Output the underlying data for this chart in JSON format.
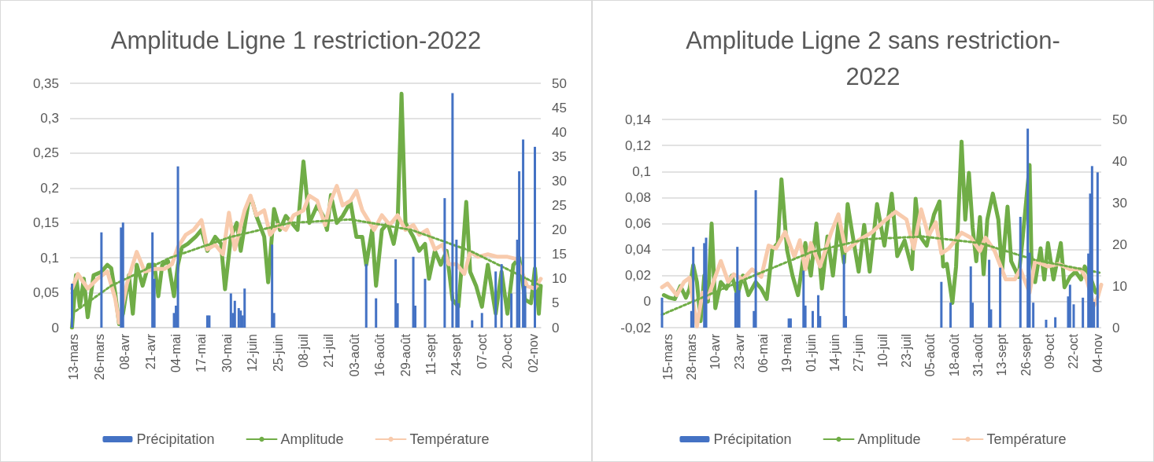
{
  "chart_data": [
    {
      "type": "line",
      "title": "Amplitude Ligne 1 restriction-2022",
      "grid": "y",
      "legend": "bottom",
      "marker": "none",
      "xlim": [
        "--03-11",
        "--11-06"
      ],
      "xticks": [
        {
          "value": "--03-13",
          "label": "13-mars"
        },
        {
          "value": "--03-26",
          "label": "26-mars"
        },
        {
          "value": "--04-08",
          "label": "08-avr"
        },
        {
          "value": "--04-21",
          "label": "21-avr"
        },
        {
          "value": "--05-04",
          "label": "04-mai"
        },
        {
          "value": "--05-17",
          "label": "17-mai"
        },
        {
          "value": "--05-30",
          "label": "30-mai"
        },
        {
          "value": "--06-12",
          "label": "12-juin"
        },
        {
          "value": "--06-25",
          "label": "25-juin"
        },
        {
          "value": "--07-08",
          "label": "08-juil"
        },
        {
          "value": "--07-21",
          "label": "21-juil"
        },
        {
          "value": "--08-03",
          "label": "03-août"
        },
        {
          "value": "--08-16",
          "label": "16-août"
        },
        {
          "value": "--08-29",
          "label": "29-août"
        },
        {
          "value": "--09-11",
          "label": "11-sept"
        },
        {
          "value": "--09-24",
          "label": "24-sept"
        },
        {
          "value": "--10-07",
          "label": "07-oct"
        },
        {
          "value": "--10-20",
          "label": "20-oct"
        },
        {
          "value": "--11-02",
          "label": "02-nov"
        }
      ],
      "ylim": [
        0,
        0.35
      ],
      "yticks": [
        0,
        {
          "value": 0.05,
          "label": "0,05"
        },
        {
          "value": 0.1,
          "label": "0,1"
        },
        {
          "value": 0.15,
          "label": "0,15"
        },
        {
          "value": 0.2,
          "label": "0,2"
        },
        {
          "value": 0.25,
          "label": "0,25"
        },
        {
          "value": 0.3,
          "label": "0,3"
        },
        {
          "value": 0.35,
          "label": "0,35"
        }
      ],
      "y2lim": [
        0,
        50
      ],
      "y2ticks": [
        0,
        5,
        10,
        15,
        20,
        25,
        30,
        35,
        40,
        45,
        50
      ],
      "series": [
        {
          "name": "Précipitation",
          "type": "bar",
          "axis": "y2",
          "color": "#4472c4",
          "x": [
            "--03-12",
            "--03-27",
            "--04-06",
            "--04-07",
            "--04-22",
            "--04-23",
            "--05-03",
            "--05-04",
            "--05-05",
            "--05-20",
            "--05-21",
            "--06-01",
            "--06-02",
            "--06-03",
            "--06-05",
            "--06-06",
            "--06-07",
            "--06-08",
            "--06-22",
            "--06-23",
            "--08-09",
            "--08-14",
            "--08-24",
            "--08-25",
            "--09-02",
            "--09-03",
            "--09-08",
            "--09-18",
            "--09-22",
            "--09-24",
            "--09-25",
            "--10-02",
            "--10-07",
            "--10-14",
            "--10-17",
            "--10-22",
            "--10-25",
            "--10-26",
            "--10-28",
            "--10-29",
            "--11-03"
          ],
          "values": [
            9,
            19.5,
            20.5,
            21.5,
            19.5,
            10,
            3,
            4.5,
            33,
            2.5,
            2.5,
            7,
            3,
            5.5,
            4,
            3.5,
            2.5,
            8,
            17,
            3,
            13,
            6,
            14,
            5,
            14.5,
            4.5,
            10,
            26.5,
            48,
            18,
            5,
            1.5,
            3,
            11.5,
            13,
            7,
            18,
            32,
            38.5,
            8.5,
            37
          ]
        },
        {
          "name": "Amplitude",
          "axis": "y",
          "color": "#70ad47",
          "x": [
            "--03-12",
            "--03-14",
            "--03-16",
            "--03-18",
            "--03-20",
            "--03-23",
            "--03-27",
            "--03-30",
            "--04-01",
            "--04-03",
            "--04-05",
            "--04-07",
            "--04-10",
            "--04-12",
            "--04-14",
            "--04-17",
            "--04-20",
            "--04-23",
            "--04-25",
            "--04-27",
            "--04-30",
            "--05-03",
            "--05-05",
            "--05-07",
            "--05-10",
            "--05-14",
            "--05-17",
            "--05-20",
            "--05-24",
            "--05-27",
            "--05-29",
            "--06-01",
            "--06-04",
            "--06-06",
            "--06-10",
            "--06-12",
            "--06-14",
            "--06-18",
            "--06-20",
            "--06-23",
            "--06-26",
            "--06-29",
            "--07-02",
            "--07-05",
            "--07-08",
            "--07-11",
            "--07-15",
            "--07-18",
            "--07-20",
            "--07-22",
            "--07-25",
            "--07-28",
            "--08-01",
            "--08-04",
            "--08-07",
            "--08-09",
            "--08-12",
            "--08-14",
            "--08-17",
            "--08-20",
            "--08-23",
            "--08-25",
            "--08-27",
            "--08-29",
            "--09-02",
            "--09-05",
            "--09-08",
            "--09-10",
            "--09-13",
            "--09-16",
            "--09-19",
            "--09-22",
            "--09-25",
            "--09-27",
            "--09-29",
            "--10-01",
            "--10-04",
            "--10-07",
            "--10-10",
            "--10-14",
            "--10-17",
            "--10-20",
            "--10-23",
            "--10-26",
            "--10-29",
            "--11-01",
            "--11-03",
            "--11-05",
            "--11-06"
          ],
          "values": [
            0.0,
            0.075,
            0.03,
            0.07,
            0.015,
            0.075,
            0.08,
            0.09,
            0.085,
            0.05,
            0.005,
            0.02,
            0.075,
            0.02,
            0.09,
            0.06,
            0.09,
            0.09,
            0.045,
            0.09,
            0.095,
            0.045,
            0.09,
            0.115,
            0.12,
            0.13,
            0.14,
            0.11,
            0.13,
            0.12,
            0.055,
            0.13,
            0.15,
            0.11,
            0.18,
            0.18,
            0.16,
            0.13,
            0.065,
            0.17,
            0.14,
            0.16,
            0.15,
            0.14,
            0.238,
            0.15,
            0.175,
            0.16,
            0.14,
            0.19,
            0.15,
            0.16,
            0.18,
            0.13,
            0.13,
            0.09,
            0.14,
            0.06,
            0.14,
            0.15,
            0.12,
            0.15,
            0.335,
            0.15,
            0.13,
            0.11,
            0.12,
            0.07,
            0.11,
            0.09,
            0.11,
            0.04,
            0.03,
            0.1,
            0.18,
            0.08,
            0.06,
            0.03,
            0.09,
            0.02,
            0.08,
            0.02,
            0.09,
            0.1,
            0.04,
            0.035,
            0.085,
            0.02,
            0.06
          ]
        },
        {
          "name": "Température",
          "axis": "y2",
          "color": "#f8cbad",
          "x": [
            "--03-12",
            "--03-15",
            "--03-20",
            "--03-25",
            "--03-30",
            "--04-03",
            "--04-05",
            "--04-09",
            "--04-14",
            "--04-18",
            "--04-23",
            "--04-28",
            "--05-02",
            "--05-05",
            "--05-09",
            "--05-13",
            "--05-17",
            "--05-20",
            "--05-24",
            "--05-28",
            "--05-31",
            "--06-03",
            "--06-08",
            "--06-11",
            "--06-14",
            "--06-18",
            "--06-21",
            "--06-25",
            "--06-29",
            "--07-03",
            "--07-08",
            "--07-11",
            "--07-15",
            "--07-19",
            "--07-22",
            "--07-25",
            "--07-28",
            "--08-01",
            "--08-04",
            "--08-07",
            "--08-10",
            "--08-13",
            "--08-17",
            "--08-21",
            "--08-25",
            "--08-29",
            "--09-02",
            "--09-05",
            "--09-09",
            "--09-13",
            "--09-17",
            "--09-20",
            "--09-24",
            "--09-28",
            "--10-01",
            "--10-05",
            "--10-10",
            "--10-15",
            "--10-20",
            "--10-25",
            "--10-30",
            "--11-03",
            "--11-06"
          ],
          "values": [
            8,
            11,
            8,
            10,
            11.5,
            6,
            1,
            9,
            15.5,
            11.5,
            12,
            12,
            13,
            16.5,
            19,
            20,
            22,
            16,
            17,
            15,
            23.5,
            16,
            24,
            27,
            23,
            24,
            19,
            21,
            20,
            23,
            24,
            27,
            26,
            21,
            26,
            29,
            25,
            26,
            28,
            24,
            22,
            20,
            23,
            21,
            23,
            20,
            21,
            19,
            20,
            16,
            17,
            13,
            13,
            11,
            15.5,
            14.5,
            15,
            14.5,
            14.5,
            14,
            8.5,
            8,
            10
          ]
        },
        {
          "type": "line",
          "axis": "y",
          "color": "#70ad47",
          "line_style": "dotted",
          "x": [
            "--03-12",
            "--04-01",
            "--05-01",
            "--06-01",
            "--07-01",
            "--08-01",
            "--09-01",
            "--10-01",
            "--11-06"
          ],
          "values": [
            0.02,
            0.06,
            0.1,
            0.13,
            0.15,
            0.155,
            0.14,
            0.11,
            0.06
          ]
        }
      ]
    },
    {
      "type": "line",
      "title": "Amplitude Ligne 2 sans restriction-2022",
      "grid": "y",
      "legend": "bottom",
      "marker": "none",
      "xlim": [
        "--03-12",
        "--11-06"
      ],
      "xticks": [
        {
          "value": "--03-15",
          "label": "15-mars"
        },
        {
          "value": "--03-28",
          "label": "28-mars"
        },
        {
          "value": "--04-10",
          "label": "10-avr"
        },
        {
          "value": "--04-23",
          "label": "23-avr"
        },
        {
          "value": "--05-06",
          "label": "06-mai"
        },
        {
          "value": "--05-19",
          "label": "19-mai"
        },
        {
          "value": "--06-01",
          "label": "01-juin"
        },
        {
          "value": "--06-14",
          "label": "14-juin"
        },
        {
          "value": "--06-27",
          "label": "27-juin"
        },
        {
          "value": "--07-10",
          "label": "10-juil"
        },
        {
          "value": "--07-23",
          "label": "23-juil"
        },
        {
          "value": "--08-05",
          "label": "05-août"
        },
        {
          "value": "--08-18",
          "label": "18-août"
        },
        {
          "value": "--08-31",
          "label": "31-août"
        },
        {
          "value": "--09-13",
          "label": "13-sept"
        },
        {
          "value": "--09-26",
          "label": "26-sept"
        },
        {
          "value": "--10-09",
          "label": "09-oct"
        },
        {
          "value": "--10-22",
          "label": "22-oct"
        },
        {
          "value": "--11-04",
          "label": "04-nov"
        }
      ],
      "ylim": [
        -0.02,
        0.14
      ],
      "yticks": [
        {
          "value": -0.02,
          "label": "-0,02"
        },
        0,
        {
          "value": 0.02,
          "label": "0,02"
        },
        {
          "value": 0.04,
          "label": "0,04"
        },
        {
          "value": 0.06,
          "label": "0,06"
        },
        {
          "value": 0.08,
          "label": "0,08"
        },
        {
          "value": 0.1,
          "label": "0,1"
        },
        {
          "value": 0.12,
          "label": "0,12"
        },
        {
          "value": 0.14,
          "label": "0,14"
        }
      ],
      "y2lim": [
        0,
        50
      ],
      "y2ticks": [
        0,
        10,
        20,
        30,
        40,
        50
      ],
      "series": [
        {
          "name": "Précipitation",
          "type": "bar",
          "axis": "y2",
          "color": "#4472c4",
          "x": [
            "--03-12",
            "--03-28",
            "--03-29",
            "--04-04",
            "--04-05",
            "--04-21",
            "--04-22",
            "--04-23",
            "--05-01",
            "--05-02",
            "--05-20",
            "--05-21",
            "--05-28",
            "--05-29",
            "--06-02",
            "--06-05",
            "--06-06",
            "--06-19",
            "--06-20",
            "--08-11",
            "--08-16",
            "--08-27",
            "--08-28",
            "--09-06",
            "--09-07",
            "--09-12",
            "--09-23",
            "--09-27",
            "--09-28",
            "--09-30",
            "--10-07",
            "--10-12",
            "--10-19",
            "--10-20",
            "--10-22",
            "--10-27",
            "--10-30",
            "--10-31",
            "--11-01",
            "--11-02",
            "--11-04"
          ],
          "values": [
            7.2,
            4,
            19.4,
            20.3,
            21.6,
            8.4,
            19.4,
            9,
            4,
            33,
            2.2,
            2.2,
            13.7,
            5.3,
            4,
            7.8,
            2.8,
            17.5,
            2.8,
            11,
            6,
            14.7,
            6,
            16.3,
            4.4,
            14.4,
            26.6,
            47.8,
            18,
            6,
            1.9,
            2.5,
            7.5,
            10.3,
            5.6,
            7.2,
            17.8,
            32.2,
            38.8,
            6.2,
            37.3
          ]
        },
        {
          "name": "Amplitude",
          "axis": "y",
          "color": "#70ad47",
          "x": [
            "--03-13",
            "--03-16",
            "--03-19",
            "--03-22",
            "--03-25",
            "--03-27",
            "--03-29",
            "--03-31",
            "--04-02",
            "--04-04",
            "--04-06",
            "--04-08",
            "--04-10",
            "--04-13",
            "--04-16",
            "--04-19",
            "--04-22",
            "--04-25",
            "--04-28",
            "--05-02",
            "--05-05",
            "--05-08",
            "--05-11",
            "--05-14",
            "--05-16",
            "--05-19",
            "--05-22",
            "--05-25",
            "--05-29",
            "--06-01",
            "--06-04",
            "--06-07",
            "--06-10",
            "--06-13",
            "--06-16",
            "--06-19",
            "--06-21",
            "--06-23",
            "--06-27",
            "--06-30",
            "--07-03",
            "--07-07",
            "--07-11",
            "--07-15",
            "--07-18",
            "--07-22",
            "--07-26",
            "--07-28",
            "--07-30",
            "--08-03",
            "--08-07",
            "--08-10",
            "--08-12",
            "--08-14",
            "--08-17",
            "--08-19",
            "--08-22",
            "--08-24",
            "--08-26",
            "--08-28",
            "--08-30",
            "--09-01",
            "--09-03",
            "--09-05",
            "--09-08",
            "--09-11",
            "--09-13",
            "--09-16",
            "--09-18",
            "--09-22",
            "--09-24",
            "--09-28",
            "--09-29",
            "--10-01",
            "--10-04",
            "--10-06",
            "--10-08",
            "--10-11",
            "--10-15",
            "--10-17",
            "--10-20",
            "--10-23",
            "--10-26",
            "--10-28",
            "--10-31",
            "--11-03"
          ],
          "values": [
            0.005,
            0.003,
            0.002,
            0.012,
            0.003,
            0.01,
            0.028,
            0.015,
            -0.015,
            0.02,
            0.0,
            0.06,
            -0.005,
            0.015,
            0.01,
            0.02,
            0.005,
            0.02,
            0.005,
            0.015,
            0.01,
            0.002,
            0.04,
            0.045,
            0.094,
            0.04,
            0.02,
            0.005,
            0.045,
            0.02,
            0.06,
            0.01,
            0.05,
            0.02,
            0.06,
            0.03,
            0.075,
            0.057,
            0.023,
            0.059,
            0.023,
            0.075,
            0.043,
            0.083,
            0.035,
            0.047,
            0.025,
            0.079,
            0.051,
            0.043,
            0.067,
            0.077,
            0.027,
            0.029,
            -0.001,
            0.027,
            0.123,
            0.063,
            0.099,
            0.057,
            0.031,
            0.065,
            0.021,
            0.063,
            0.083,
            0.063,
            0.023,
            0.073,
            0.031,
            0.019,
            0.045,
            0.105,
            0.035,
            0.015,
            0.041,
            0.017,
            0.045,
            0.017,
            0.045,
            0.011,
            0.019,
            0.023,
            0.017,
            0.027,
            0.019,
            0.007
          ]
        },
        {
          "name": "Température",
          "axis": "y2",
          "color": "#f8cbad",
          "x": [
            "--03-12",
            "--03-15",
            "--03-20",
            "--03-24",
            "--03-27",
            "--03-31",
            "--04-03",
            "--04-06",
            "--04-13",
            "--04-17",
            "--04-20",
            "--04-25",
            "--04-30",
            "--05-05",
            "--05-09",
            "--05-13",
            "--05-18",
            "--05-23",
            "--05-26",
            "--05-29",
            "--06-01",
            "--06-06",
            "--06-12",
            "--06-16",
            "--06-20",
            "--06-27",
            "--07-04",
            "--07-12",
            "--07-17",
            "--07-23",
            "--07-27",
            "--07-31",
            "--08-04",
            "--08-08",
            "--08-11",
            "--08-15",
            "--08-22",
            "--08-27",
            "--09-01",
            "--09-04",
            "--09-09",
            "--09-15",
            "--09-20",
            "--09-23",
            "--09-28",
            "--10-01",
            "--10-08",
            "--10-14",
            "--10-20",
            "--10-26",
            "--10-29",
            "--11-02",
            "--11-04",
            "--11-06"
          ],
          "values": [
            9.7,
            10.6,
            7.8,
            11,
            12,
            0.3,
            8.4,
            7.2,
            16,
            11,
            12.8,
            11.6,
            14,
            12.2,
            19.7,
            19,
            23,
            17,
            21,
            14,
            20.3,
            14.7,
            22.8,
            27.2,
            18.4,
            21,
            22.8,
            26,
            27.8,
            26,
            19,
            28.4,
            22,
            25.3,
            17.8,
            19,
            22.8,
            21.6,
            18.4,
            21.6,
            18.4,
            11.6,
            11.6,
            14,
            8.4,
            16,
            14.7,
            15.3,
            14,
            14,
            11.6,
            5.3,
            7.2,
            10.3
          ]
        },
        {
          "type": "line",
          "axis": "y",
          "color": "#70ad47",
          "line_style": "dotted",
          "x": [
            "--03-12",
            "--04-01",
            "--05-01",
            "--06-01",
            "--07-01",
            "--08-01",
            "--09-01",
            "--10-01",
            "--11-06"
          ],
          "values": [
            -0.01,
            0.002,
            0.02,
            0.038,
            0.048,
            0.05,
            0.045,
            0.032,
            0.022
          ]
        }
      ]
    }
  ]
}
